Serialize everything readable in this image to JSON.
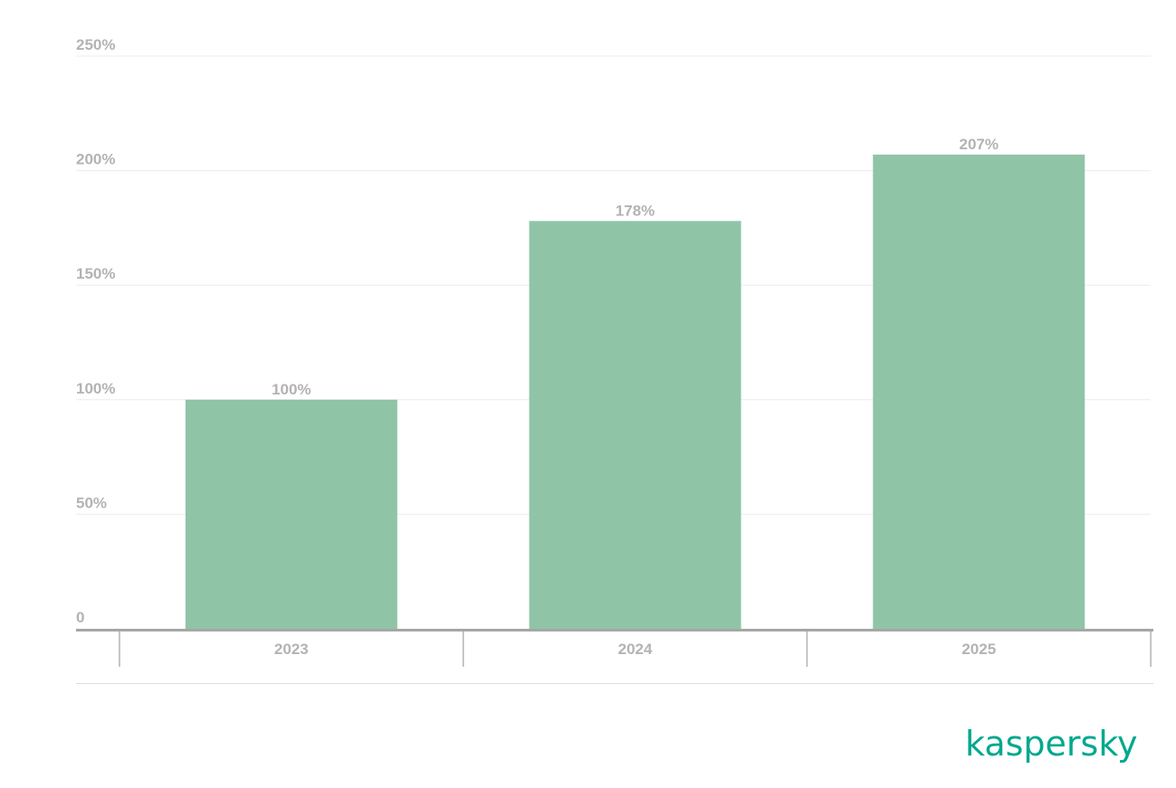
{
  "chart_data": {
    "type": "bar",
    "categories": [
      "2023",
      "2024",
      "2025"
    ],
    "values": [
      100,
      178,
      207
    ],
    "data_labels": [
      "100%",
      "178%",
      "207%"
    ],
    "yticks": [
      0,
      50,
      100,
      150,
      200,
      250
    ],
    "ytick_labels": [
      "0",
      "50%",
      "100%",
      "150%",
      "200%",
      "250%"
    ],
    "ylim": [
      0,
      250
    ],
    "grid": true,
    "bar_color": "#8fc4a7",
    "title": "",
    "xlabel": "",
    "ylabel": ""
  },
  "logo": {
    "text": "kaspersky",
    "color": "#00a88e"
  }
}
